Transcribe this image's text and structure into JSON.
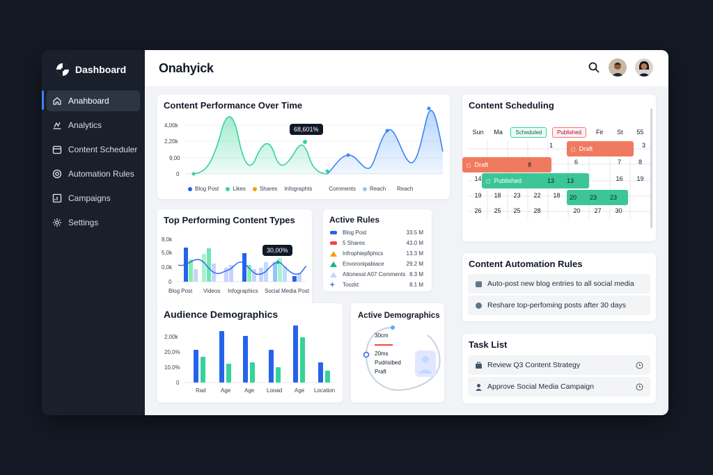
{
  "sidebar": {
    "brand": "Dashboard",
    "items": [
      {
        "label": "Anahboard",
        "icon": "home-icon"
      },
      {
        "label": "Analytics",
        "icon": "analytics-icon"
      },
      {
        "label": "Content Scheduler",
        "icon": "calendar-icon"
      },
      {
        "label": "Automation Rules",
        "icon": "automation-icon"
      },
      {
        "label": "Campaigns",
        "icon": "campaign-icon"
      },
      {
        "label": "Settings",
        "icon": "gear-icon"
      }
    ]
  },
  "header": {
    "title": "Onahyick"
  },
  "performance": {
    "title": "Content Performance Over Time",
    "y_ticks": [
      "4,00k",
      "2,20k",
      "9,00",
      "0"
    ],
    "tooltip": "68,601%",
    "legend": [
      {
        "label": "Blog Post",
        "color": "#2563eb"
      },
      {
        "label": "Likes",
        "color": "#34d399"
      },
      {
        "label": "Shares",
        "color": "#f59e0b"
      },
      {
        "label": "Infographts",
        "color": ""
      },
      {
        "label": "Comments",
        "color": ""
      },
      {
        "label": "Reach",
        "color": "#93c5fd"
      },
      {
        "label": "Reach",
        "color": ""
      }
    ]
  },
  "top_types": {
    "title": "Top Performing Content Types",
    "y_ticks": [
      "8,0k",
      "5,0k",
      "0,0k",
      "0"
    ],
    "x_labels": [
      "Blog Post",
      "Videos",
      "Infographics",
      "Social Media Post"
    ],
    "tooltip": "30,00%"
  },
  "active_rules": {
    "title": "Active Rules",
    "rows": [
      {
        "label": "Blog Post",
        "value": "33.5 M",
        "color": "#2563eb"
      },
      {
        "label": "5 Shares",
        "value": "43.0 M",
        "color": "#ef4444"
      },
      {
        "label": "Infrophiepfiphics",
        "value": "13.3 M",
        "color": "#f59e0b"
      },
      {
        "label": "Envoronipabiace",
        "value": "29.2 M",
        "color": "#10b981"
      },
      {
        "label": "Attonesst A07 Comments",
        "value": "8.3 M",
        "color": "#c7d2fe"
      },
      {
        "label": "Toozkt",
        "value": "8.1 M",
        "color": "#2563eb"
      }
    ]
  },
  "demographics": {
    "title": "Audience Demographics",
    "y_ticks": [
      "2,00k",
      "20,0%",
      "10,0%",
      "0"
    ],
    "x_labels": [
      "Rad",
      "Age",
      "Age",
      "Looad",
      "Age",
      "Location"
    ]
  },
  "active_demo": {
    "title": "Active Demographics",
    "lines": [
      "30cm",
      "20ms",
      "Pudrisibed",
      "Praft"
    ]
  },
  "scheduling": {
    "title": "Content Scheduling",
    "days": [
      "Sun",
      "Ma",
      "Scheduled",
      "Published",
      "Fir",
      "St",
      "55"
    ],
    "weeks": [
      [
        "",
        "",
        "",
        "1",
        "2",
        "",
        "3"
      ],
      [
        "",
        "",
        "",
        "",
        "6",
        "7",
        "8"
      ],
      [
        "14",
        "",
        "",
        "12",
        "13",
        "16",
        "19"
      ],
      [
        "19",
        "18",
        "23",
        "18",
        "22",
        "27",
        "20"
      ],
      [
        "26",
        "25",
        "25",
        "28",
        "20",
        "27",
        "30"
      ]
    ],
    "events": [
      {
        "label": "Draft",
        "color": "#f07a5f"
      },
      {
        "label": "Draft",
        "color": "#f07a5f"
      },
      {
        "label": "Published",
        "color": "#3cc697"
      }
    ],
    "event_cell_text": [
      "8",
      "13",
      "13",
      "20",
      "23",
      "23"
    ]
  },
  "automation": {
    "title": "Content Automation Rules",
    "rules": [
      "Auto-post new blog entries to all social media",
      "Reshare top-perfoming posts after 30 days"
    ]
  },
  "tasks": {
    "title": "Task List",
    "items": [
      "Review Q3 Content Strategy",
      "Approve Social Media Campaign"
    ]
  }
}
